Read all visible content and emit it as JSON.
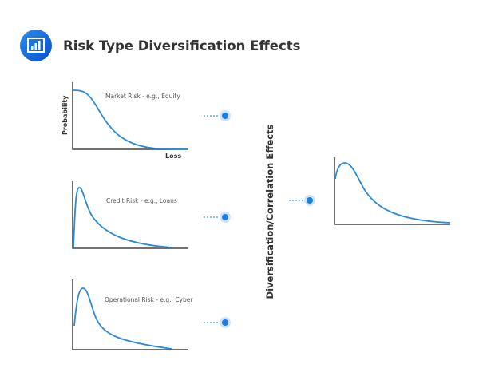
{
  "header": {
    "title": "Risk Type Diversification Effects",
    "icon": "bar-chart-icon"
  },
  "axes": {
    "ylabel": "Probability",
    "xlabel": "Loss"
  },
  "panels": [
    {
      "label": "Market Risk - e.g., Equity"
    },
    {
      "label": "Credit Risk - e.g., Loans"
    },
    {
      "label": "Operational Risk - e.g., Cyber"
    }
  ],
  "center_label": "Diversification/Correlation Effects",
  "colors": {
    "accent": "#1a7fe0",
    "curve": "#2b8ad8",
    "axis": "#444444",
    "text": "#333333"
  }
}
